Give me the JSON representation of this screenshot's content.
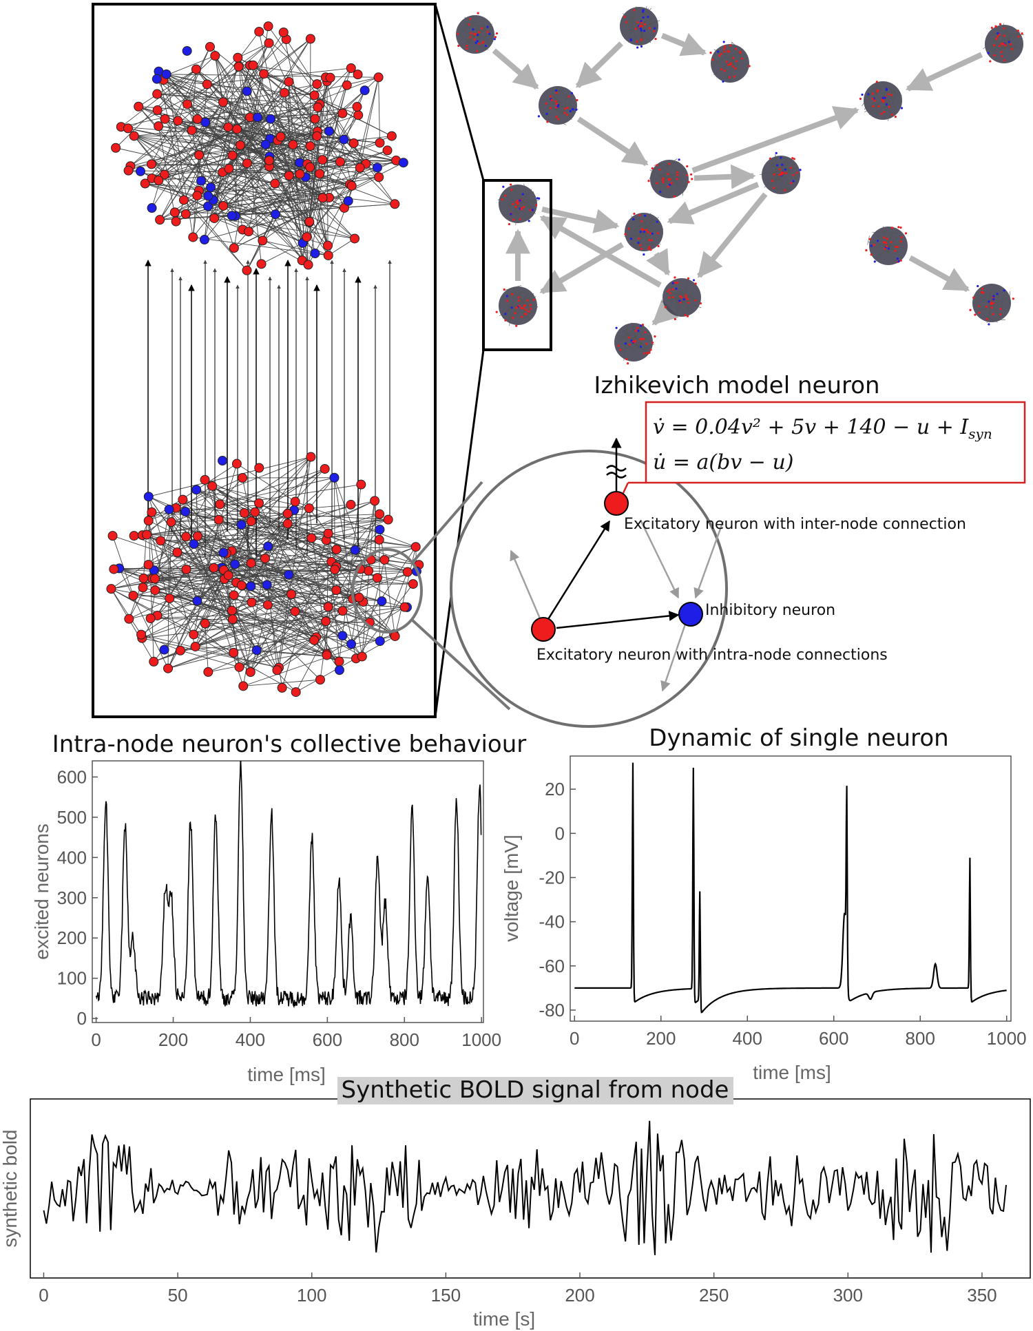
{
  "model": {
    "title": "Izhikevich model neuron",
    "eq1_lhs": "v̇",
    "eq1_rhs": " = 0.04v² + 5v + 140 − u + I",
    "eq1_sub": "syn",
    "eq2": "u̇ = a(bv − u)"
  },
  "zoom_labels": {
    "inter": "Excitatory neuron with inter-node connection",
    "inhib": "Inhibitory neuron",
    "intra": "Excitatory neuron with intra-node connections"
  },
  "colors": {
    "excitatory": "#ee1c1c",
    "inhibitory": "#1e1ee6",
    "arrow_gray": "#b3b3b3",
    "box_red": "#d42020"
  },
  "panels": {
    "collective": {
      "title": "Intra-node neuron's collective behaviour",
      "ylabel": "excited neurons",
      "xlabel": "time [ms]"
    },
    "single": {
      "title": "Dynamic of single neuron",
      "ylabel": "voltage [mV]",
      "xlabel": "time [ms]"
    },
    "bold": {
      "title": "Synthetic BOLD signal from node",
      "ylabel": "synthetic bold",
      "xlabel": "time [s]"
    }
  },
  "chart_data": [
    {
      "type": "line",
      "title": "Intra-node neuron's collective behaviour",
      "xlabel": "time [ms]",
      "ylabel": "excited neurons",
      "xlim": [
        -10,
        1005
      ],
      "ylim": [
        -10,
        640
      ],
      "xticks": [
        0,
        200,
        400,
        600,
        800,
        1000
      ],
      "yticks": [
        0,
        100,
        200,
        300,
        400,
        500,
        600
      ],
      "peaks": [
        [
          25,
          540
        ],
        [
          75,
          480
        ],
        [
          95,
          200
        ],
        [
          180,
          320
        ],
        [
          195,
          300
        ],
        [
          245,
          490
        ],
        [
          310,
          510
        ],
        [
          375,
          630
        ],
        [
          455,
          520
        ],
        [
          560,
          450
        ],
        [
          630,
          350
        ],
        [
          660,
          250
        ],
        [
          730,
          400
        ],
        [
          750,
          290
        ],
        [
          820,
          520
        ],
        [
          860,
          360
        ],
        [
          935,
          540
        ],
        [
          995,
          570
        ]
      ],
      "baseline": 50
    },
    {
      "type": "line",
      "title": "Dynamic of single neuron",
      "xlabel": "time [ms]",
      "ylabel": "voltage [mV]",
      "xlim": [
        -10,
        1010
      ],
      "ylim": [
        -85,
        35
      ],
      "xticks": [
        0,
        200,
        400,
        600,
        800,
        1000
      ],
      "yticks": [
        20,
        0,
        -20,
        -40,
        -60,
        -80
      ],
      "spikes": [
        [
          135,
          32
        ],
        [
          275,
          30
        ],
        [
          290,
          -21
        ],
        [
          630,
          6
        ],
        [
          915,
          -11
        ]
      ],
      "subthreshold_bumps": [
        [
          625,
          -36
        ],
        [
          685,
          -73
        ],
        [
          835,
          -59
        ]
      ],
      "rest": -70,
      "reset": -77
    },
    {
      "type": "line",
      "title": "Synthetic BOLD signal from node",
      "xlabel": "time [s]",
      "ylabel": "synthetic bold",
      "xlim": [
        -5,
        368
      ],
      "xticks": [
        0,
        50,
        100,
        150,
        200,
        250,
        300,
        350
      ],
      "n_points": 360
    }
  ]
}
